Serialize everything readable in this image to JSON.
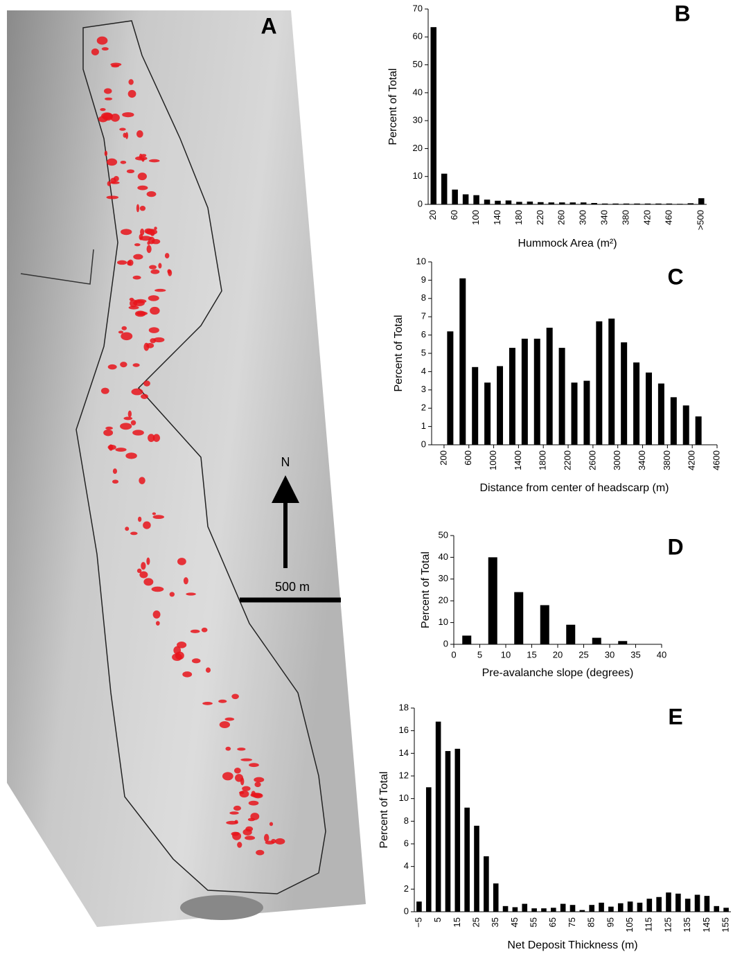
{
  "panel_a": {
    "label": "A",
    "north": "N",
    "scale": "500 m"
  },
  "chart_data": [
    {
      "type": "bar",
      "panel": "B",
      "x_label": "Hummock Area (m²)",
      "y_label": "Percent of Total",
      "categories": [
        "20",
        null,
        "60",
        null,
        "100",
        null,
        "140",
        null,
        "180",
        null,
        "220",
        null,
        "260",
        null,
        "300",
        null,
        "340",
        null,
        "380",
        null,
        "420",
        null,
        "460",
        null,
        null,
        ">500"
      ],
      "values": [
        63.5,
        11,
        5.3,
        3.6,
        3.3,
        1.7,
        1.3,
        1.4,
        0.9,
        1.0,
        0.8,
        0.7,
        0.7,
        0.7,
        0.7,
        0.5,
        0.3,
        0.3,
        0.3,
        0.3,
        0.3,
        0.3,
        0.3,
        0.2,
        0.4,
        2.2
      ],
      "color": "#000000",
      "ylim": [
        0,
        70
      ],
      "yticks": [
        0,
        10,
        20,
        30,
        40,
        50,
        60,
        70
      ]
    },
    {
      "type": "bar",
      "panel": "C",
      "x_label": "Distance from center of headscarp (m)",
      "y_label": "Percent of Total",
      "x": [
        300,
        500,
        700,
        900,
        1100,
        1300,
        1500,
        1700,
        1900,
        2100,
        2300,
        2500,
        2700,
        2900,
        3100,
        3300,
        3500,
        3700,
        3900,
        4100,
        4300
      ],
      "values": [
        6.2,
        9.1,
        4.25,
        3.4,
        4.3,
        5.3,
        5.8,
        5.8,
        6.4,
        5.3,
        3.4,
        3.5,
        6.75,
        6.9,
        5.6,
        4.5,
        3.95,
        3.35,
        2.6,
        2.15,
        1.55
      ],
      "color": "#000000",
      "xlim": [
        0,
        4600
      ],
      "xticks": [
        200,
        600,
        1000,
        1400,
        1800,
        2200,
        2600,
        3000,
        3400,
        3800,
        4200,
        4600
      ],
      "ylim": [
        0,
        10
      ],
      "yticks": [
        0,
        1,
        2,
        3,
        4,
        5,
        6,
        7,
        8,
        9,
        10
      ]
    },
    {
      "type": "bar",
      "panel": "D",
      "x_label": "Pre-avalanche slope (degrees)",
      "y_label": "Percent of Total",
      "x": [
        2.5,
        7.5,
        12.5,
        17.5,
        22.5,
        27.5,
        32.5
      ],
      "values": [
        4,
        40,
        24,
        18,
        9,
        3,
        1.5
      ],
      "color": "#000000",
      "xlim": [
        0,
        40
      ],
      "xticks": [
        0,
        5,
        10,
        15,
        20,
        25,
        30,
        35,
        40
      ],
      "ylim": [
        0,
        50
      ],
      "yticks": [
        0,
        10,
        20,
        30,
        40,
        50
      ]
    },
    {
      "type": "bar",
      "panel": "E",
      "x_label": "Net Deposit Thickness (m)",
      "y_label": "Percent of Total",
      "categories": [
        "−5",
        null,
        "5",
        null,
        "15",
        null,
        "25",
        null,
        "35",
        null,
        "45",
        null,
        "55",
        null,
        "65",
        null,
        "75",
        null,
        "85",
        null,
        "95",
        null,
        "105",
        null,
        "115",
        null,
        "125",
        null,
        "135",
        null,
        "145",
        null,
        "155"
      ],
      "values": [
        0.9,
        11,
        16.8,
        14.2,
        14.4,
        9.2,
        7.6,
        4.9,
        2.5,
        0.5,
        0.4,
        0.7,
        0.3,
        0.3,
        0.35,
        0.7,
        0.6,
        0.15,
        0.6,
        0.8,
        0.45,
        0.75,
        0.9,
        0.8,
        1.15,
        1.3,
        1.7,
        1.6,
        1.15,
        1.5,
        1.4,
        0.5,
        0.35
      ],
      "color": "#000000",
      "ylim": [
        0,
        18
      ],
      "yticks": [
        0,
        2,
        4,
        6,
        8,
        10,
        12,
        14,
        16,
        18
      ]
    }
  ]
}
